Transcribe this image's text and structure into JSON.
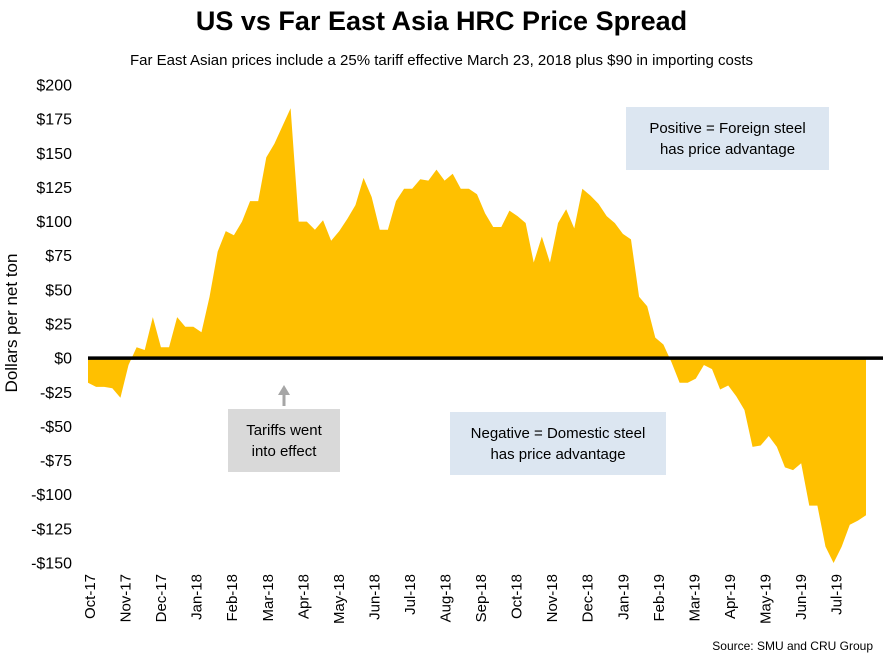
{
  "chart_data": {
    "type": "area",
    "title": "US vs Far East Asia HRC Price Spread",
    "subtitle": "Far East Asian prices include a 25% tariff effective March 23, 2018 plus $90 in importing costs",
    "ylabel": "Dollars per net ton",
    "xlabel": "",
    "ylim": [
      -150,
      200
    ],
    "yticks": [
      200,
      175,
      150,
      125,
      100,
      75,
      50,
      25,
      0,
      -25,
      -50,
      -75,
      -100,
      -125,
      -150
    ],
    "ytick_labels": [
      "$200",
      "$175",
      "$150",
      "$125",
      "$100",
      "$75",
      "$50",
      "$25",
      "$0",
      "-$25",
      "-$50",
      "-$75",
      "-$100",
      "-$125",
      "-$150"
    ],
    "x_ticks": [
      "Oct-17",
      "Nov-17",
      "Dec-17",
      "Jan-18",
      "Feb-18",
      "Mar-18",
      "Apr-18",
      "May-18",
      "Jun-18",
      "Jul-18",
      "Aug-18",
      "Sep-18",
      "Oct-18",
      "Nov-18",
      "Dec-18",
      "Jan-19",
      "Feb-19",
      "Mar-19",
      "Apr-19",
      "May-19",
      "Jun-19",
      "Jul-19"
    ],
    "series": [
      {
        "name": "Price Spread",
        "color": "#ffc000",
        "values": [
          -18,
          -21,
          -21,
          -22,
          -29,
          -5,
          8,
          6,
          30,
          8,
          8,
          30,
          23,
          23,
          19,
          45,
          78,
          93,
          90,
          100,
          115,
          115,
          147,
          157,
          170,
          183,
          100,
          100,
          94,
          101,
          86,
          93,
          102,
          112,
          132,
          118,
          94,
          94,
          115,
          124,
          124,
          131,
          130,
          138,
          130,
          135,
          124,
          124,
          120,
          106,
          96,
          96,
          108,
          104,
          99,
          70,
          89,
          70,
          99,
          109,
          95,
          124,
          119,
          113,
          104,
          99,
          91,
          87,
          45,
          38,
          15,
          10,
          -3,
          -18,
          -18,
          -15,
          -5,
          -8,
          -23,
          -20,
          -28,
          -38,
          -65,
          -64,
          -57,
          -65,
          -80,
          -82,
          -77,
          -108,
          -108,
          -138,
          -150,
          -138,
          -122,
          -119,
          -115
        ]
      }
    ],
    "annotations": [
      {
        "text": "Positive = Foreign steel has price advantage"
      },
      {
        "text": "Negative = Domestic steel has price advantage"
      },
      {
        "text": "Tariffs went into effect"
      }
    ],
    "source": "Source: SMU and CRU Group"
  }
}
